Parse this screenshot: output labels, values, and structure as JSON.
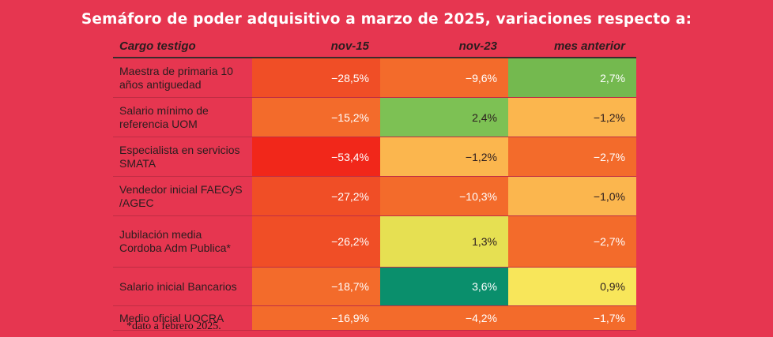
{
  "title": "Semáforo de poder adquisitivo a marzo de 2025, variaciones respecto a:",
  "columns": {
    "label": "Cargo testigo",
    "c1": "nov-15",
    "c2": "nov-23",
    "c3": "mes anterior"
  },
  "rows": [
    {
      "label": "Maestra de primaria 10 años antiguedad",
      "c1": "−28,5%",
      "c2": "−9,6%",
      "c3": "2,7%",
      "colors": [
        "#f04e26",
        "#f36b2b",
        "#74b94f"
      ],
      "dark": [
        false,
        false,
        false
      ]
    },
    {
      "label": "Salario mínimo de referencia UOM",
      "c1": "−15,2%",
      "c2": "2,4%",
      "c3": "−1,2%",
      "colors": [
        "#f36b2b",
        "#7dc154",
        "#fbb64e"
      ],
      "dark": [
        false,
        true,
        true
      ]
    },
    {
      "label": "Especialista en servicios SMATA",
      "c1": "−53,4%",
      "c2": "−1,2%",
      "c3": "−2,7%",
      "colors": [
        "#f1271a",
        "#fbb64e",
        "#f36b2b"
      ],
      "dark": [
        false,
        true,
        false
      ]
    },
    {
      "label": "Vendedor inicial FAECyS /AGEC",
      "c1": "−27,2%",
      "c2": "−10,3%",
      "c3": "−1,0%",
      "colors": [
        "#f04e26",
        "#f36b2b",
        "#fbb64e"
      ],
      "dark": [
        false,
        false,
        true
      ]
    },
    {
      "label": "Jubilación media Cordoba Adm Publica*",
      "c1": "−26,2%",
      "c2": "1,3%",
      "c3": "−2,7%",
      "colors": [
        "#f04e26",
        "#e6e052",
        "#f36b2b"
      ],
      "dark": [
        false,
        true,
        false
      ]
    },
    {
      "label": "Salario inicial Bancarios",
      "c1": "−18,7%",
      "c2": "3,6%",
      "c3": "0,9%",
      "colors": [
        "#f36b2b",
        "#0a8f6c",
        "#f8e65a"
      ],
      "dark": [
        false,
        false,
        true
      ]
    },
    {
      "label": "Medio oficial UOCRA",
      "c1": "−16,9%",
      "c2": "−4,2%",
      "c3": "−1,7%",
      "colors": [
        "#f36b2b",
        "#f36b2b",
        "#f36b2b"
      ],
      "dark": [
        false,
        false,
        false
      ]
    }
  ],
  "row_heights": [
    49,
    49,
    49,
    49,
    64,
    48,
    30
  ],
  "footnote": "*dato a febrero 2025."
}
